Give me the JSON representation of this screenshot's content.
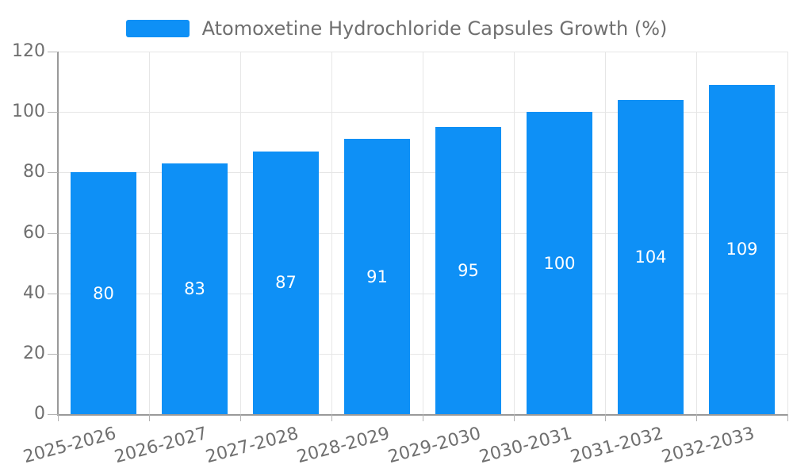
{
  "legend": {
    "label": "Atomoxetine Hydrochloride Capsules Growth (%)"
  },
  "colors": {
    "bar": "#0e90f6",
    "grid": "#e6e6e6",
    "axis": "#999999",
    "tick": "#b3b3b3",
    "text": "#6f6f6f",
    "bar_label": "#ffffff",
    "background": "#ffffff"
  },
  "chart_data": {
    "type": "bar",
    "categories": [
      "2025-2026",
      "2026-2027",
      "2027-2028",
      "2028-2029",
      "2029-2030",
      "2030-2031",
      "2031-2032",
      "2032-2033"
    ],
    "series": [
      {
        "name": "Atomoxetine Hydrochloride Capsules Growth (%)",
        "values": [
          80,
          83,
          87,
          91,
          95,
          100,
          104,
          109
        ]
      }
    ],
    "bar_labels": [
      "80",
      "83",
      "87",
      "91",
      "95",
      "100",
      "104",
      "109"
    ],
    "bar_label_position": "center",
    "xlabel": "",
    "ylabel": "",
    "ylim": [
      0,
      120
    ],
    "yticks": [
      0,
      20,
      40,
      60,
      80,
      100,
      120
    ],
    "grid": true,
    "legend_position": "top-center",
    "x_tick_rotation_deg": 15
  }
}
